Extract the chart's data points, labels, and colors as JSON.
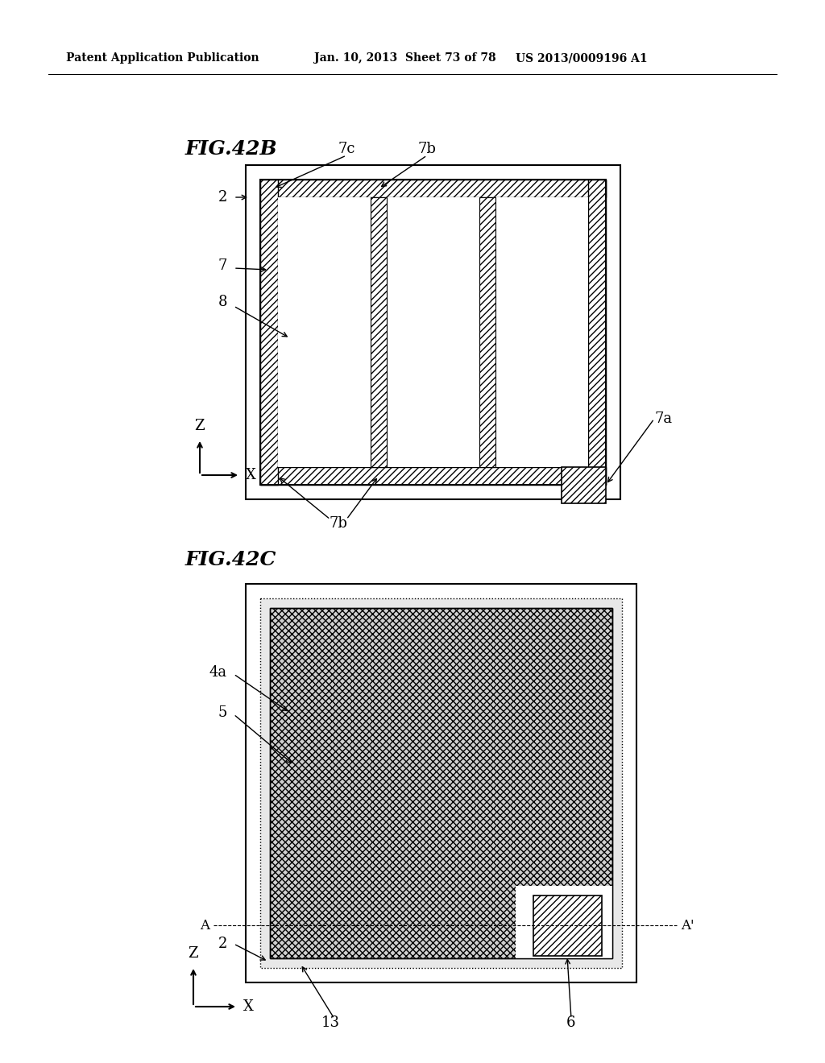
{
  "bg_color": "#ffffff",
  "header_left": "Patent Application Publication",
  "header_mid": "Jan. 10, 2013  Sheet 73 of 78",
  "header_right": "US 2013/0009196 A1",
  "fig42b_title": "FIG.42B",
  "fig42c_title": "FIG.42C",
  "line_color": "#000000",
  "hatch_color": "#000000",
  "light_hatch": "///",
  "dense_hatch": "xxx"
}
